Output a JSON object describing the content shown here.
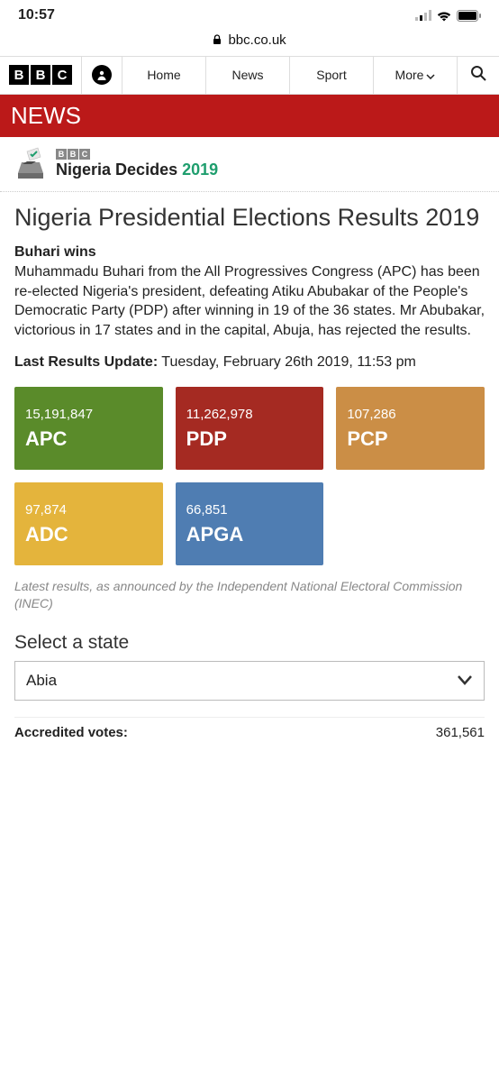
{
  "status": {
    "time": "10:57"
  },
  "browser": {
    "domain": "bbc.co.uk"
  },
  "nav": {
    "items": [
      "Home",
      "News",
      "Sport",
      "More"
    ]
  },
  "newsBrand": "NEWS",
  "decides": {
    "line1": "Nigeria",
    "line2": "Decides",
    "year": "2019"
  },
  "pageTitle": "Nigeria Presidential Elections Results 2019",
  "subhead": "Buhari wins",
  "body": "Muhammadu Buhari from the All Progressives Congress (APC) has been re-elected Nigeria's president, defeating Atiku Abubakar of the People's Democratic Party (PDP) after winning in 19 of the 36 states. Mr Abubakar, victorious in 17 states and in the capital, Abuja, has rejected the results.",
  "updateLabel": "Last Results Update:",
  "updateValue": "Tuesday, February 26th 2019, 11:53 pm",
  "tiles": [
    {
      "votes": "15,191,847",
      "party": "APC",
      "color": "#5a8b2a"
    },
    {
      "votes": "11,262,978",
      "party": "PDP",
      "color": "#a52a22"
    },
    {
      "votes": "107,286",
      "party": "PCP",
      "color": "#cb8e46"
    },
    {
      "votes": "97,874",
      "party": "ADC",
      "color": "#e4b43c"
    },
    {
      "votes": "66,851",
      "party": "APGA",
      "color": "#4f7db2"
    }
  ],
  "caption": "Latest results, as announced by the Independent National Electoral Commission (INEC)",
  "selectLabel": "Select a state",
  "selectedState": "Abia",
  "stats": {
    "accreditedLabel": "Accredited votes:",
    "accreditedValue": "361,561"
  }
}
